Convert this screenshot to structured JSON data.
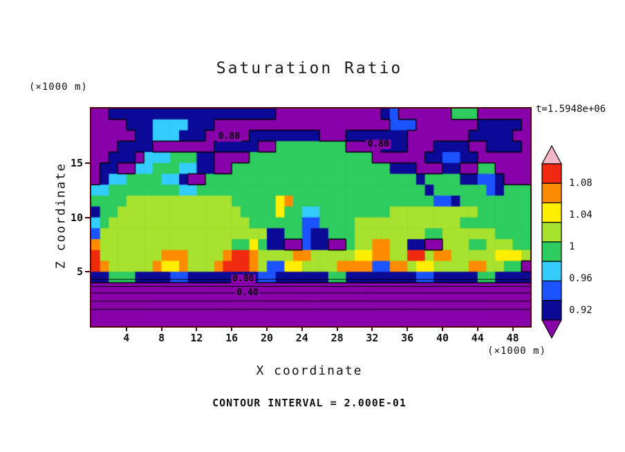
{
  "title": "Saturation Ratio",
  "annotations": {
    "time_label": "t=1.5948e+06",
    "contour_interval": "CONTOUR INTERVAL = 2.000E-01",
    "y_units": "(×1000 m)",
    "x_units": "(×1000 m)"
  },
  "axes": {
    "x_label": "X coordinate",
    "y_label": "Z coordinate",
    "x_ticks": [
      4,
      8,
      12,
      16,
      20,
      24,
      28,
      32,
      36,
      40,
      44,
      48
    ],
    "y_ticks": [
      5,
      10,
      15
    ],
    "x_range": [
      0,
      50
    ],
    "y_range": [
      0,
      20
    ]
  },
  "colorbar": {
    "labels": [
      "1.08",
      "1.04",
      "1",
      "0.96",
      "0.92"
    ],
    "top_color": "#f2b6c6",
    "bottom_color": "#8800aa",
    "band_colors": [
      "#f02a10",
      "#ff8c00",
      "#ffee00",
      "#a6e22e",
      "#2ecc5f",
      "#33ccff",
      "#1a53ff",
      "#0a0a96"
    ]
  },
  "chart_data": {
    "type": "heatmap",
    "title": "Saturation Ratio",
    "xlabel": "X coordinate (×1000 m)",
    "ylabel": "Z coordinate (×1000 m)",
    "x_range": [
      0,
      50
    ],
    "y_range": [
      0,
      20
    ],
    "time": "t=1.5948e+06",
    "contour_interval": 0.2,
    "legend_position": "right",
    "levels": {
      "P": {
        "color": "#8800aa",
        "value": "<0.92"
      },
      "N": {
        "color": "#0a0a96",
        "value": "0.92-0.94"
      },
      "B": {
        "color": "#1a53ff",
        "value": "0.94-0.96"
      },
      "C": {
        "color": "#33ccff",
        "value": "0.96-0.98"
      },
      "G": {
        "color": "#2ecc5f",
        "value": "0.98-1.02"
      },
      "Y": {
        "color": "#a6e22e",
        "value": "1.02-1.04"
      },
      "L": {
        "color": "#ffee00",
        "value": "1.04-1.06"
      },
      "O": {
        "color": "#ff8c00",
        "value": "1.06-1.08"
      },
      "R": {
        "color": "#f02a10",
        "value": "1.08-1.10"
      },
      "K": {
        "color": "#f2b6c6",
        "value": ">1.10"
      }
    },
    "grid_rle_rows_top_to_bottom": [
      "P2,N19,P12,N1,B1,P6,G3,P6",
      "P4,N3,C4,N3,P20,B3,P7,N5,P1",
      "P5,N2,C3,N3,P5,N8,P3,N7,P7,N5,P2",
      "P3,N4,P7,N5,P2,G8,P4,N3,P3,N4,P2,N4,P1",
      "P2,N3,P1,C3,G3,N2,P4,G14,P6,N2,B2,N2,P6",
      "P1,N2,P2,C2,G3,C2,N2,P2,G18,N3,P3,N2,P2,G2,P4",
      "P1,N1,C2,G4,C2,N1,P2,G24,N1,G4,N2,B2,N1,P3",
      "C2,G8,C2,G26,N1,G6,B1,N1,G3",
      "G4,Y12,G5,L1,O1,G16,B2,N1,G8",
      "N1,G2,Y14,G4,L1,G2,C2,G8,Y10,G6",
      "C1,G1,Y16,G6,B2,G4,Y12,G8",
      "B1,Y19,N2,G2,B1,N2,G3,Y8,G2,Y6,G4",
      "O1,Y15,G2,L1,G1,N2,P2,B1,N2,P2,G1,Y2,O2,Y2,N2,P2,Y3,G2,Y3,G2",
      "R1,Y7,O3,Y4,O1,R2,O1,Y4,O2,Y5,L2,O2,Y2,R2,Y1,O2,Y5,L3,Y1",
      "R1,O1,Y5,O1,L2,O1,Y3,O1,R3,O1,Y1,B2,L2,Y4,O4,B2,O2,Y1,L2,Y4,O2,Y2,G2,P1",
      "N2,G3,N4,B2,N8,B2,N6,G2,N8,B2,N5,G2,N4",
      "P50",
      "P50",
      "P50",
      "P50"
    ],
    "contour_labels": [
      {
        "text": "0.80",
        "x": 15.7,
        "y": 17.4
      },
      {
        "text": "0.80",
        "x": 32.7,
        "y": 16.7
      },
      {
        "text": "0.80",
        "x": 17.3,
        "y": 4.3
      },
      {
        "text": "0.40",
        "x": 17.8,
        "y": 3.05
      }
    ],
    "extra_contour_lines_y": [
      4.3,
      3.65,
      3.05,
      2.3,
      1.55
    ]
  }
}
